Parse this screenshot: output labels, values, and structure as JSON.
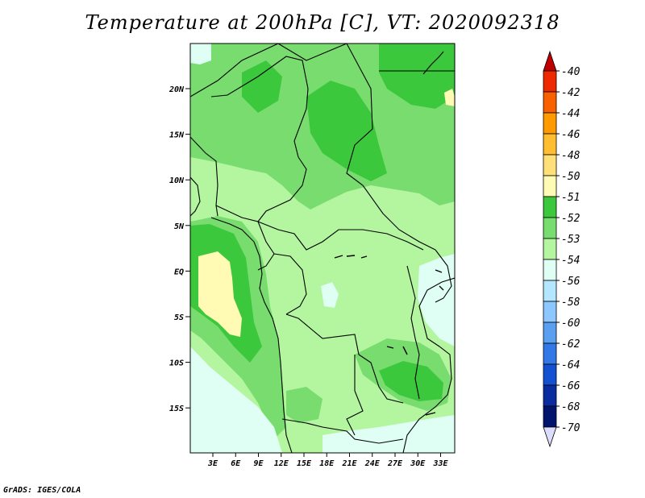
{
  "title": "Temperature at 200hPa [C], VT: 2020092318",
  "credit": "GrADS: IGES/COLA",
  "lat_ticks": [
    "20N",
    "15N",
    "10N",
    "5N",
    "EQ",
    "5S",
    "10S",
    "15S"
  ],
  "lon_ticks": [
    "3E",
    "6E",
    "9E",
    "12E",
    "15E",
    "18E",
    "21E",
    "24E",
    "27E",
    "30E",
    "33E"
  ],
  "legend": [
    {
      "label": "-40",
      "color": "#c00000"
    },
    {
      "label": "-42",
      "color": "#ee2800"
    },
    {
      "label": "-44",
      "color": "#f86000"
    },
    {
      "label": "-46",
      "color": "#ff9a00"
    },
    {
      "label": "-48",
      "color": "#ffbe30"
    },
    {
      "label": "-50",
      "color": "#ffe078"
    },
    {
      "label": "-51",
      "color": "#fffab4"
    },
    {
      "label": "-52",
      "color": "#3cc83c"
    },
    {
      "label": "-53",
      "color": "#78dc6e"
    },
    {
      "label": "-54",
      "color": "#b4f5a0"
    },
    {
      "label": "-56",
      "color": "#e0fff4"
    },
    {
      "label": "-58",
      "color": "#b4e6ff"
    },
    {
      "label": "-60",
      "color": "#8cc8ff"
    },
    {
      "label": "-62",
      "color": "#5aa0f0"
    },
    {
      "label": "-64",
      "color": "#3278e6"
    },
    {
      "label": "-66",
      "color": "#1450d2"
    },
    {
      "label": "-68",
      "color": "#0a2ca0"
    },
    {
      "label": "-70",
      "color": "#00146e"
    }
  ],
  "legend_over_color": "#c00000",
  "legend_under_color": "#dcdcff"
}
